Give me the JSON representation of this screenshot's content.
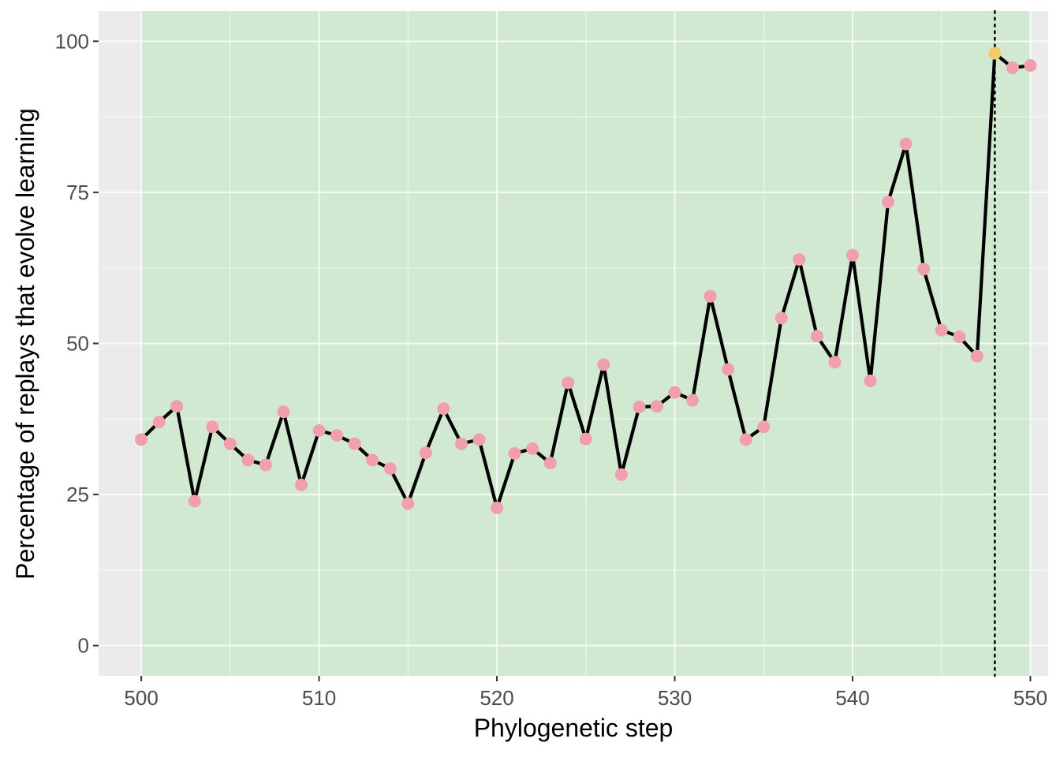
{
  "chart_data": {
    "type": "line",
    "xlabel": "Phylogenetic step",
    "ylabel": "Percentage of replays that evolve learning",
    "xlim": [
      497.6,
      551.0
    ],
    "ylim": [
      -5,
      105
    ],
    "x_ticks": [
      500,
      510,
      520,
      530,
      540,
      550
    ],
    "x_tick_labels": [
      "500",
      "510",
      "520",
      "530",
      "540",
      "550"
    ],
    "y_ticks": [
      0,
      25,
      50,
      75,
      100
    ],
    "y_tick_labels": [
      "0",
      "25",
      "50",
      "75",
      "100"
    ],
    "grid": true,
    "legend": "none",
    "shaded_region": {
      "x_start": 500,
      "x_end": 550,
      "color": "#d1e9d1"
    },
    "vertical_line": {
      "x": 548,
      "style": "dotted",
      "color": "#000000"
    },
    "colors": {
      "panel_background": "#ebebeb",
      "grid_line": "#ffffff",
      "line": "#000000",
      "point": "#f19fae",
      "highlight_point": "#f2cc69"
    },
    "highlight_x": 548,
    "series": [
      {
        "x": [
          500,
          501,
          502,
          503,
          504,
          505,
          506,
          507,
          508,
          509,
          510,
          511,
          512,
          513,
          514,
          515,
          516,
          517,
          518,
          519,
          520,
          521,
          522,
          523,
          524,
          525,
          526,
          527,
          528,
          529,
          530,
          531,
          532,
          533,
          534,
          535,
          536,
          537,
          538,
          539,
          540,
          541,
          542,
          543,
          544,
          545,
          546,
          547,
          548,
          549,
          550
        ],
        "values": [
          34.1,
          37.0,
          39.6,
          23.9,
          36.2,
          33.4,
          30.7,
          29.9,
          38.7,
          26.6,
          35.6,
          34.8,
          33.4,
          30.7,
          29.3,
          23.5,
          31.9,
          39.2,
          33.4,
          34.1,
          22.8,
          31.8,
          32.6,
          30.2,
          43.5,
          34.2,
          46.5,
          28.3,
          39.5,
          39.6,
          41.9,
          40.6,
          57.8,
          45.7,
          34.1,
          36.2,
          54.2,
          63.9,
          51.2,
          46.9,
          64.6,
          43.8,
          73.4,
          83.0,
          62.3,
          52.2,
          51.1,
          47.9,
          98.0,
          95.6,
          96.0
        ]
      }
    ]
  }
}
